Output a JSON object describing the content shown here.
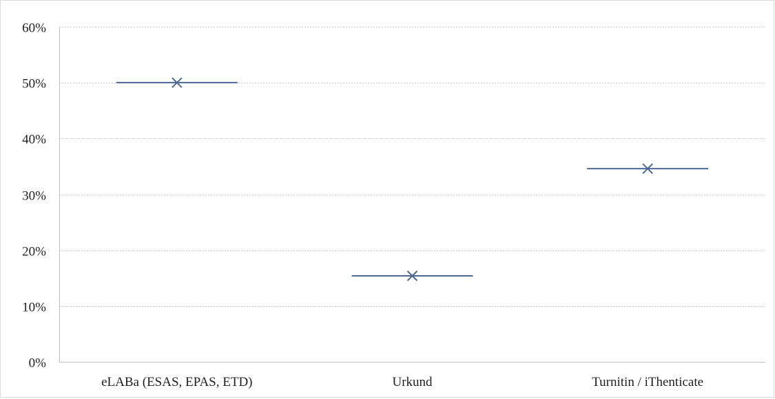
{
  "chart_data": {
    "type": "scatter",
    "title": "",
    "xlabel": "",
    "ylabel": "",
    "categories": [
      "eLABa (ESAS, EPAS, ETD)",
      "Urkund",
      "Turnitin / iThenticate"
    ],
    "values": [
      0.5,
      0.154,
      0.346
    ],
    "ylim": [
      0,
      0.6
    ],
    "yticks": [
      0,
      0.1,
      0.2,
      0.3,
      0.4,
      0.5,
      0.6
    ],
    "ytick_labels": [
      "0%",
      "10%",
      "20%",
      "30%",
      "40%",
      "50%",
      "60%"
    ],
    "grid": true,
    "legend": "none",
    "marker": "x",
    "colors": {
      "series": "#4a6796",
      "grid": "#c8c8c8",
      "axis": "#bfbfbf",
      "text": "#1f1f1f"
    }
  }
}
